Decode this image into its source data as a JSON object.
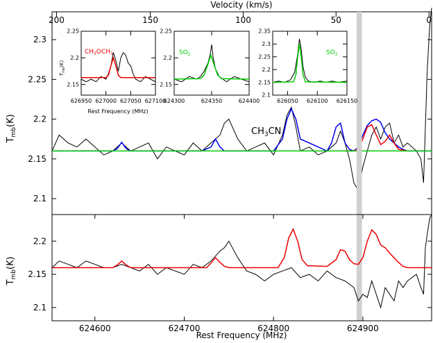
{
  "chart_data": [
    {
      "type": "line",
      "panel": "top",
      "xlabel_top": "Velocity (km/s)",
      "ylabel_main": "T",
      "ylabel_sub": "mb",
      "ylabel_unit": "(K)",
      "xlim": [
        624552,
        624977
      ],
      "ylim": [
        2.08,
        2.335
      ],
      "velocity_ticks": [
        "200",
        "150",
        "100",
        "50",
        "0"
      ],
      "velocity_tick_freqs": [
        624557,
        624662,
        624766,
        624870,
        624974
      ],
      "y_ticks": [
        2.1,
        2.15,
        2.2,
        2.25,
        2.3
      ],
      "y_tick_labels": [
        "2.1",
        "2.15",
        "2.2",
        "2.25",
        "2.3"
      ],
      "baseline": 2.16,
      "annotations": [
        {
          "text": "CH",
          "sub": "3",
          "text2": "CN",
          "x": 624815,
          "y": 2.215,
          "color": "#0000ee"
        }
      ],
      "series": [
        {
          "name": "observed",
          "color": "#000000",
          "x": [
            624552,
            624560,
            624570,
            624580,
            624590,
            624600,
            624610,
            624620,
            624630,
            624640,
            624650,
            624660,
            624670,
            624680,
            624690,
            624700,
            624710,
            624720,
            624730,
            624740,
            624745,
            624750,
            624760,
            624770,
            624780,
            624790,
            624800,
            624810,
            624815,
            624820,
            624825,
            624830,
            624840,
            624850,
            624860,
            624870,
            624875,
            624880,
            624885,
            624890,
            624895,
            624900,
            624905,
            624910,
            624915,
            624920,
            624925,
            624930,
            624935,
            624940,
            624945,
            624950,
            624960,
            624965,
            624968,
            624970,
            624972,
            624975,
            624977
          ],
          "y": [
            2.16,
            2.18,
            2.17,
            2.165,
            2.175,
            2.165,
            2.155,
            2.16,
            2.17,
            2.16,
            2.165,
            2.17,
            2.15,
            2.165,
            2.16,
            2.155,
            2.17,
            2.16,
            2.17,
            2.18,
            2.195,
            2.2,
            2.175,
            2.16,
            2.165,
            2.17,
            2.155,
            2.18,
            2.205,
            2.215,
            2.19,
            2.16,
            2.165,
            2.155,
            2.16,
            2.17,
            2.185,
            2.17,
            2.15,
            2.12,
            2.11,
            2.14,
            2.16,
            2.18,
            2.19,
            2.175,
            2.19,
            2.195,
            2.17,
            2.18,
            2.165,
            2.17,
            2.16,
            2.15,
            2.12,
            2.19,
            2.26,
            2.32,
            2.34
          ]
        },
        {
          "name": "",
          "color": "#0000ee",
          "x": [
            624552,
            624620,
            624625,
            624630,
            624635,
            624640,
            624720,
            624730,
            624735,
            624740,
            624745,
            624750,
            624800,
            624810,
            624815,
            624820,
            624825,
            624830,
            624860,
            624865,
            624870,
            624875,
            624880,
            624885,
            624890,
            624895,
            624900,
            624905,
            624910,
            624915,
            624920,
            624925,
            624930,
            624935,
            624940,
            624945,
            624950,
            624977
          ],
          "y": [
            2.16,
            2.16,
            2.163,
            2.171,
            2.163,
            2.16,
            2.16,
            2.165,
            2.175,
            2.165,
            2.16,
            2.16,
            2.16,
            2.175,
            2.2,
            2.213,
            2.2,
            2.175,
            2.16,
            2.17,
            2.19,
            2.195,
            2.17,
            2.162,
            2.16,
            2.165,
            2.18,
            2.192,
            2.198,
            2.2,
            2.196,
            2.183,
            2.175,
            2.17,
            2.165,
            2.162,
            2.16,
            2.16
          ]
        },
        {
          "name": "",
          "color": "#ee0000",
          "x": [
            624880,
            624890,
            624895,
            624900,
            624905,
            624910,
            624915,
            624920,
            624925,
            624930,
            624935,
            624940,
            624950
          ],
          "y": [
            2.16,
            2.16,
            2.163,
            2.175,
            2.19,
            2.193,
            2.18,
            2.168,
            2.172,
            2.18,
            2.17,
            2.162,
            2.16
          ]
        },
        {
          "name": "",
          "color": "#00cc00",
          "x": [
            624552,
            624977
          ],
          "y": [
            2.16,
            2.16
          ]
        }
      ]
    },
    {
      "type": "line",
      "panel": "bottom",
      "xlabel": "Rest Frequency (MHz)",
      "ylabel_main": "T",
      "ylabel_sub": "mb",
      "ylabel_unit": "(K)",
      "xlim": [
        624552,
        624977
      ],
      "ylim": [
        2.08,
        2.24
      ],
      "x_ticks": [
        624600,
        624700,
        624800,
        624900
      ],
      "x_tick_labels": [
        "624600",
        "624700",
        "624800",
        "624900"
      ],
      "y_ticks": [
        2.1,
        2.15,
        2.2
      ],
      "y_tick_labels": [
        "2.1",
        "2.15",
        "2.2"
      ],
      "shaded_band": [
        624893,
        624899
      ],
      "series": [
        {
          "name": "observed",
          "color": "#000000",
          "x": [
            624552,
            624560,
            624570,
            624580,
            624590,
            624600,
            624610,
            624620,
            624630,
            624640,
            624650,
            624660,
            624670,
            624680,
            624690,
            624700,
            624710,
            624720,
            624730,
            624740,
            624745,
            624750,
            624760,
            624770,
            624780,
            624790,
            624800,
            624810,
            624820,
            624830,
            624840,
            624850,
            624860,
            624870,
            624880,
            624885,
            624890,
            624895,
            624900,
            624905,
            624910,
            624915,
            624920,
            624925,
            624930,
            624935,
            624940,
            624945,
            624950,
            624960,
            624965,
            624968,
            624970,
            624972,
            624975,
            624977
          ],
          "y": [
            2.16,
            2.17,
            2.165,
            2.16,
            2.17,
            2.165,
            2.16,
            2.16,
            2.165,
            2.16,
            2.155,
            2.165,
            2.15,
            2.16,
            2.155,
            2.15,
            2.165,
            2.16,
            2.17,
            2.185,
            2.19,
            2.2,
            2.175,
            2.155,
            2.15,
            2.14,
            2.15,
            2.155,
            2.16,
            2.145,
            2.15,
            2.14,
            2.155,
            2.145,
            2.14,
            2.135,
            2.13,
            2.11,
            2.12,
            2.115,
            2.14,
            2.12,
            2.1,
            2.13,
            2.12,
            2.11,
            2.14,
            2.13,
            2.14,
            2.15,
            2.13,
            2.12,
            2.19,
            2.21,
            2.235,
            2.24
          ]
        },
        {
          "name": "",
          "color": "#ee0000",
          "x": [
            624552,
            624620,
            624625,
            624630,
            624635,
            624640,
            624725,
            624730,
            624735,
            624740,
            624745,
            624750,
            624805,
            624812,
            624817,
            624822,
            624827,
            624832,
            624838,
            624860,
            624870,
            624875,
            624880,
            624885,
            624890,
            624895,
            624900,
            624905,
            624910,
            624915,
            624920,
            624925,
            624930,
            624935,
            624940,
            624945,
            624950,
            624977
          ],
          "y": [
            2.16,
            2.16,
            2.164,
            2.17,
            2.164,
            2.16,
            2.16,
            2.167,
            2.175,
            2.168,
            2.162,
            2.16,
            2.16,
            2.175,
            2.205,
            2.218,
            2.2,
            2.172,
            2.163,
            2.162,
            2.172,
            2.187,
            2.185,
            2.172,
            2.166,
            2.165,
            2.175,
            2.2,
            2.217,
            2.21,
            2.194,
            2.19,
            2.182,
            2.175,
            2.168,
            2.162,
            2.16,
            2.16
          ]
        }
      ]
    },
    {
      "type": "line",
      "panel": "inset-1",
      "label": "CH",
      "label_sub1": "3",
      "label_mid": "OCH",
      "label_sub2": "3",
      "label_color": "#ee0000",
      "xlabel": "Rest Frequency (MHz)",
      "ylabel_main": "T",
      "ylabel_sub": "mb",
      "ylabel_unit": "(K)",
      "xlim": [
        626950,
        627100
      ],
      "ylim": [
        2.13,
        2.25
      ],
      "x_ticks": [
        626950,
        627000,
        627050,
        627100
      ],
      "x_tick_labels": [
        "626950",
        "627000",
        "627050",
        "627100"
      ],
      "y_ticks": [
        2.15,
        2.2,
        2.25
      ],
      "y_tick_labels": [
        "2.15",
        "2.2",
        "2.25"
      ],
      "series": [
        {
          "name": "observed",
          "color": "#000000",
          "x": [
            626950,
            626960,
            626970,
            626980,
            626990,
            627000,
            627005,
            627010,
            627015,
            627020,
            627025,
            627030,
            627035,
            627040,
            627045,
            627050,
            627055,
            627060,
            627070,
            627080,
            627090,
            627100
          ],
          "y": [
            2.16,
            2.155,
            2.16,
            2.155,
            2.165,
            2.16,
            2.17,
            2.185,
            2.21,
            2.195,
            2.175,
            2.2,
            2.21,
            2.205,
            2.19,
            2.185,
            2.17,
            2.16,
            2.155,
            2.165,
            2.16,
            2.155
          ]
        },
        {
          "name": "",
          "color": "#ee0000",
          "x": [
            626950,
            627000,
            627005,
            627010,
            627015,
            627020,
            627025,
            627030,
            627100
          ],
          "y": [
            2.163,
            2.163,
            2.167,
            2.185,
            2.2,
            2.185,
            2.167,
            2.163,
            2.163
          ]
        }
      ]
    },
    {
      "type": "line",
      "panel": "inset-2",
      "label": "SO",
      "label_sub1": "2",
      "label_mid": "",
      "label_sub2": "",
      "label_color": "#00cc00",
      "xlabel": "",
      "xlim": [
        624300,
        624400
      ],
      "ylim": [
        2.13,
        2.25
      ],
      "x_ticks": [
        624300,
        624350,
        624400
      ],
      "x_tick_labels": [
        "624300",
        "624350",
        "624400"
      ],
      "y_ticks": [
        2.15,
        2.2,
        2.25
      ],
      "y_tick_labels": [
        "2.15",
        "2.2",
        "2.25"
      ],
      "series": [
        {
          "name": "observed",
          "color": "#000000",
          "x": [
            624300,
            624310,
            624320,
            624330,
            624335,
            624340,
            624345,
            624348,
            624350,
            624352,
            624355,
            624360,
            624365,
            624370,
            624380,
            624390,
            624400
          ],
          "y": [
            2.16,
            2.155,
            2.165,
            2.16,
            2.165,
            2.175,
            2.19,
            2.205,
            2.225,
            2.2,
            2.18,
            2.165,
            2.16,
            2.155,
            2.165,
            2.16,
            2.155
          ]
        },
        {
          "name": "",
          "color": "#00cc00",
          "x": [
            624300,
            624335,
            624340,
            624345,
            624349,
            624353,
            624358,
            624363,
            624400
          ],
          "y": [
            2.16,
            2.161,
            2.168,
            2.188,
            2.205,
            2.188,
            2.168,
            2.161,
            2.16
          ]
        }
      ]
    },
    {
      "type": "line",
      "panel": "inset-3",
      "label": "SO",
      "label_sub1": "2",
      "label_mid": "",
      "label_sub2": "",
      "label_color": "#00cc00",
      "xlabel": "",
      "xlim": [
        626025,
        626150
      ],
      "ylim": [
        2.1,
        2.35
      ],
      "x_ticks": [
        626050,
        626100,
        626150
      ],
      "x_tick_labels": [
        "626050",
        "626100",
        "626150"
      ],
      "y_ticks": [
        2.1,
        2.15,
        2.2,
        2.25,
        2.3,
        2.35
      ],
      "y_tick_labels": [
        "2.1",
        "2.15",
        "2.2",
        "2.25",
        "2.3",
        "2.35"
      ],
      "series": [
        {
          "name": "observed",
          "color": "#000000",
          "x": [
            626025,
            626035,
            626045,
            626055,
            626062,
            626067,
            626070,
            626073,
            626076,
            626080,
            626085,
            626095,
            626105,
            626115,
            626125,
            626135,
            626150
          ],
          "y": [
            2.15,
            2.155,
            2.15,
            2.16,
            2.19,
            2.26,
            2.32,
            2.28,
            2.21,
            2.17,
            2.155,
            2.15,
            2.155,
            2.15,
            2.155,
            2.15,
            2.155
          ]
        },
        {
          "name": "",
          "color": "#00cc00",
          "x": [
            626025,
            626060,
            626064,
            626067,
            626070,
            626073,
            626076,
            626080,
            626150
          ],
          "y": [
            2.15,
            2.152,
            2.18,
            2.25,
            2.3,
            2.25,
            2.18,
            2.152,
            2.15
          ]
        }
      ]
    }
  ]
}
